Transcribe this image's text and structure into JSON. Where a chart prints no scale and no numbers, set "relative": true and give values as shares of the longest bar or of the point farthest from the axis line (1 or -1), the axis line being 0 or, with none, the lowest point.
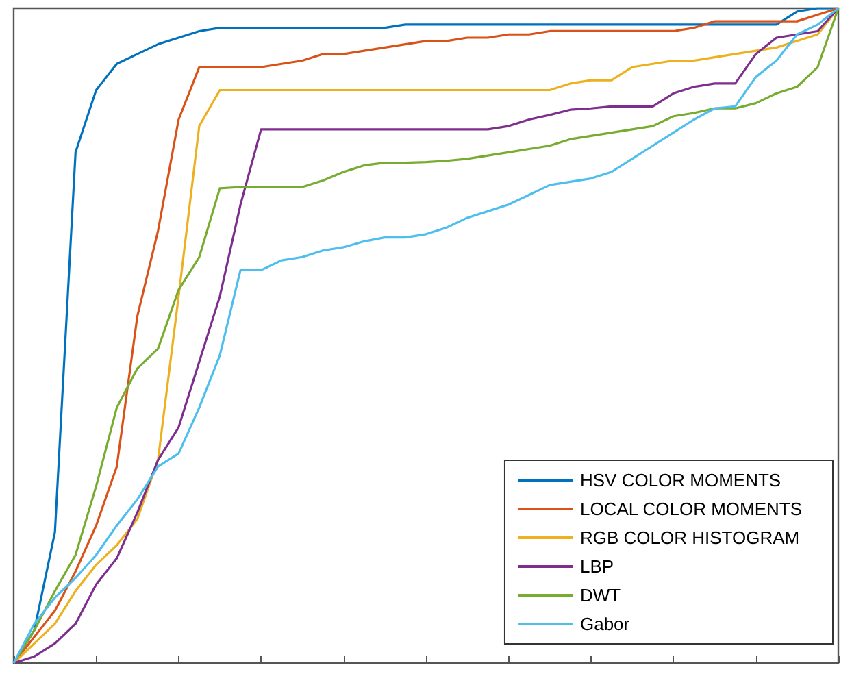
{
  "chart_data": {
    "type": "line",
    "relative": true,
    "legend": "bottom right",
    "grid": false,
    "marker": "none",
    "line_style": "solid",
    "categories": [
      null,
      null,
      null,
      null,
      null,
      null,
      null,
      null,
      null,
      null,
      null,
      null,
      null,
      null,
      null,
      null,
      null,
      null,
      null,
      null,
      null,
      null,
      null,
      null,
      null,
      null,
      null,
      null,
      null,
      null,
      null,
      null,
      null,
      null,
      null,
      null,
      null,
      null,
      null,
      null,
      null
    ],
    "series": [
      {
        "name": "HSV COLOR MOMENTS",
        "color": "#0072bd",
        "values": [
          0,
          0.05,
          0.2,
          0.78,
          0.875,
          0.915,
          0.93,
          0.945,
          0.955,
          0.965,
          0.97,
          0.97,
          0.97,
          0.97,
          0.97,
          0.97,
          0.97,
          0.97,
          0.97,
          0.975,
          0.975,
          0.975,
          0.975,
          0.975,
          0.975,
          0.975,
          0.975,
          0.975,
          0.975,
          0.975,
          0.975,
          0.975,
          0.975,
          0.975,
          0.975,
          0.975,
          0.975,
          0.975,
          0.995,
          1,
          1
        ]
      },
      {
        "name": "LOCAL COLOR MOMENTS",
        "color": "#d95319",
        "values": [
          0,
          0.04,
          0.08,
          0.14,
          0.21,
          0.3,
          0.53,
          0.66,
          0.83,
          0.91,
          0.91,
          0.91,
          0.91,
          0.915,
          0.92,
          0.93,
          0.93,
          0.935,
          0.94,
          0.945,
          0.95,
          0.95,
          0.955,
          0.955,
          0.96,
          0.96,
          0.965,
          0.965,
          0.965,
          0.965,
          0.965,
          0.965,
          0.965,
          0.97,
          0.98,
          0.98,
          0.98,
          0.98,
          0.98,
          0.99,
          1
        ]
      },
      {
        "name": "RGB COLOR HISTOGRAM",
        "color": "#edb120",
        "values": [
          0,
          0.03,
          0.06,
          0.11,
          0.15,
          0.18,
          0.22,
          0.31,
          0.56,
          0.82,
          0.875,
          0.875,
          0.875,
          0.875,
          0.875,
          0.875,
          0.875,
          0.875,
          0.875,
          0.875,
          0.875,
          0.875,
          0.875,
          0.875,
          0.875,
          0.875,
          0.875,
          0.885,
          0.89,
          0.89,
          0.91,
          0.915,
          0.92,
          0.92,
          0.925,
          0.93,
          0.935,
          0.94,
          0.95,
          0.96,
          1
        ]
      },
      {
        "name": "LBP",
        "color": "#7e2f8e",
        "values": [
          0,
          0.01,
          0.03,
          0.06,
          0.12,
          0.16,
          0.23,
          0.31,
          0.36,
          0.46,
          0.56,
          0.7,
          0.815,
          0.815,
          0.815,
          0.815,
          0.815,
          0.815,
          0.815,
          0.815,
          0.815,
          0.815,
          0.815,
          0.815,
          0.82,
          0.83,
          0.837,
          0.845,
          0.847,
          0.85,
          0.85,
          0.85,
          0.87,
          0.88,
          0.885,
          0.885,
          0.93,
          0.955,
          0.96,
          0.965,
          1
        ]
      },
      {
        "name": "DWT",
        "color": "#77ac30",
        "values": [
          0,
          0.05,
          0.11,
          0.165,
          0.27,
          0.39,
          0.45,
          0.48,
          0.57,
          0.62,
          0.725,
          0.727,
          0.727,
          0.727,
          0.727,
          0.737,
          0.75,
          0.76,
          0.764,
          0.764,
          0.765,
          0.767,
          0.77,
          0.775,
          0.78,
          0.785,
          0.79,
          0.8,
          0.805,
          0.81,
          0.815,
          0.82,
          0.835,
          0.84,
          0.847,
          0.847,
          0.855,
          0.87,
          0.88,
          0.91,
          1
        ]
      },
      {
        "name": "Gabor",
        "color": "#4dbeee",
        "values": [
          0,
          0.06,
          0.1,
          0.13,
          0.165,
          0.21,
          0.25,
          0.3,
          0.32,
          0.39,
          0.47,
          0.6,
          0.6,
          0.615,
          0.62,
          0.63,
          0.635,
          0.644,
          0.65,
          0.65,
          0.655,
          0.665,
          0.68,
          0.69,
          0.7,
          0.715,
          0.73,
          0.735,
          0.74,
          0.75,
          0.77,
          0.79,
          0.81,
          0.83,
          0.847,
          0.85,
          0.895,
          0.92,
          0.96,
          0.975,
          1
        ]
      }
    ]
  }
}
